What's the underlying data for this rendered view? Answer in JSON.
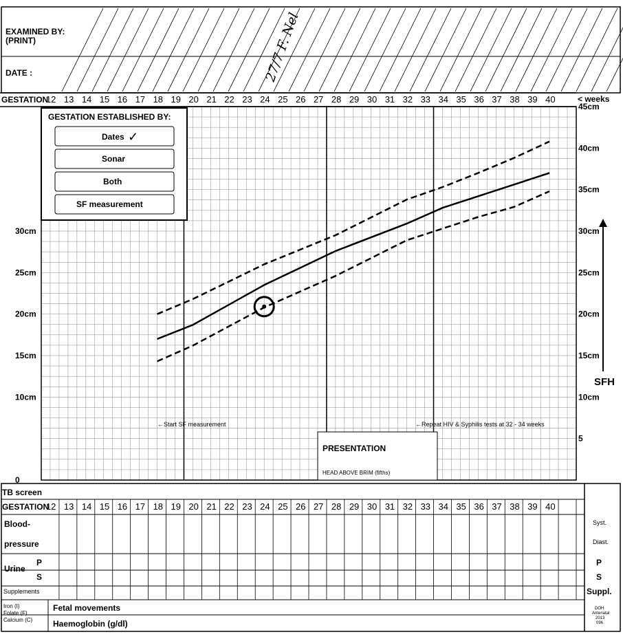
{
  "header": {
    "examined_by": "EXAMINED BY:",
    "print": "(PRINT)",
    "date": "DATE :",
    "handwritten_entry": "27/7 F. Nel"
  },
  "axis": {
    "gestation_label": "GESTATION",
    "weeks_label": "< weeks",
    "sfh_label": "SFH",
    "weeks": [
      12,
      13,
      14,
      15,
      16,
      17,
      18,
      19,
      20,
      21,
      22,
      23,
      24,
      25,
      26,
      27,
      28,
      29,
      30,
      31,
      32,
      33,
      34,
      35,
      36,
      37,
      38,
      39,
      40
    ],
    "left_ticks": [
      "30cm",
      "25cm",
      "20cm",
      "15cm",
      "10cm",
      "0"
    ],
    "right_ticks": [
      "45cm",
      "40cm",
      "35cm",
      "30cm",
      "25cm",
      "20cm",
      "15cm",
      "10cm",
      "5"
    ]
  },
  "gestation_box": {
    "title": "GESTATION ESTABLISHED BY:",
    "options": [
      {
        "label": "Dates",
        "checked": true,
        "check": "✓"
      },
      {
        "label": "Sonar",
        "checked": false
      },
      {
        "label": "Both",
        "checked": false
      },
      {
        "label": "SF measurement",
        "checked": false
      }
    ]
  },
  "notes": {
    "start_sf": "←Start SF measurement",
    "repeat_hiv": "←Repeat HIV & Syphilis tests at 32 - 34 weeks"
  },
  "presentation": {
    "title": "PRESENTATION",
    "head_above_brim": "HEAD ABOVE BRIM (fifths)"
  },
  "lower_table": {
    "tb_screen": "TB screen",
    "gestation": "GESTATION",
    "blood": "Blood-",
    "pressure": "pressure",
    "syst": "Syst.",
    "diast": "Diast.",
    "urine": "Urine",
    "p": "P",
    "s": "S",
    "supplements": "Supplements",
    "suppl": "Suppl.",
    "iron": "Iron (I)",
    "folate": "Folate (F)",
    "calcium": "Calcium (C)",
    "fetal_movements": "Fetal movements",
    "haemoglobin": "Haemoglobin (g/dl)",
    "form_code": [
      "DOH",
      "Antenatal",
      "2013",
      "096"
    ]
  },
  "chart_data": {
    "type": "line",
    "xlabel": "weeks",
    "ylabel": "SFH",
    "xlim": [
      11.5,
      41.5
    ],
    "ylim": [
      0,
      45
    ],
    "series": [
      {
        "values": [
          [
            18,
            17
          ],
          [
            20,
            18.7
          ],
          [
            24,
            23.5
          ],
          [
            28,
            27.6
          ],
          [
            32,
            30.9
          ],
          [
            34,
            32.8
          ],
          [
            36,
            34.2
          ],
          [
            38,
            35.6
          ],
          [
            40,
            37
          ]
        ],
        "style": "solid"
      },
      {
        "values": [
          [
            18,
            20
          ],
          [
            20,
            21.8
          ],
          [
            24,
            26
          ],
          [
            28,
            29.5
          ],
          [
            32,
            33.8
          ],
          [
            34,
            35.3
          ],
          [
            36,
            37
          ],
          [
            38,
            38.8
          ],
          [
            40,
            40.8
          ]
        ],
        "style": "dashed"
      },
      {
        "values": [
          [
            18,
            14.3
          ],
          [
            20,
            16.2
          ],
          [
            24,
            20.8
          ],
          [
            28,
            24.6
          ],
          [
            32,
            28.9
          ],
          [
            34,
            30.3
          ],
          [
            36,
            31.7
          ],
          [
            38,
            32.9
          ],
          [
            40,
            34.8
          ]
        ],
        "style": "dashed"
      }
    ],
    "points": [
      {
        "x": 24,
        "y": 20.9
      }
    ]
  }
}
